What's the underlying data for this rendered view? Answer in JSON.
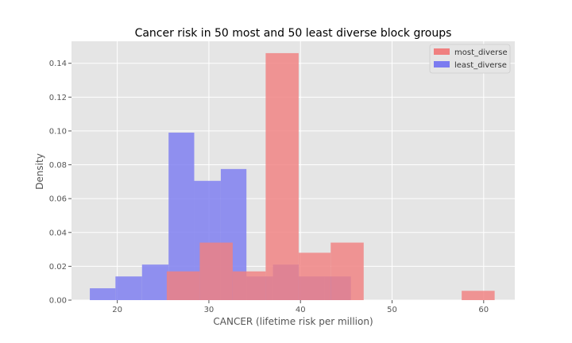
{
  "chart_data": {
    "type": "histogram",
    "title": "Cancer risk in 50 most and 50 least diverse block groups",
    "xlabel": "CANCER (lifetime risk per million)",
    "ylabel": "Density",
    "xlim": [
      15.0,
      63.4
    ],
    "ylim": [
      0,
      0.153
    ],
    "xticks": [
      20,
      30,
      40,
      50,
      60
    ],
    "yticks": [
      0.0,
      0.02,
      0.04,
      0.06,
      0.08,
      0.1,
      0.12,
      0.14
    ],
    "ytick_labels": [
      "0.00",
      "0.02",
      "0.04",
      "0.06",
      "0.08",
      "0.10",
      "0.12",
      "0.14"
    ],
    "grid": true,
    "legend_position": "top-right",
    "series": [
      {
        "name": "most_diverse",
        "color": "#f08080",
        "bins": [
          {
            "x0": 25.4,
            "x1": 29.0,
            "value": 0.017
          },
          {
            "x0": 29.0,
            "x1": 32.6,
            "value": 0.034
          },
          {
            "x0": 32.6,
            "x1": 36.2,
            "value": 0.017
          },
          {
            "x0": 36.2,
            "x1": 39.8,
            "value": 0.146
          },
          {
            "x0": 39.8,
            "x1": 43.3,
            "value": 0.028
          },
          {
            "x0": 43.3,
            "x1": 46.9,
            "value": 0.034
          },
          {
            "x0": 57.6,
            "x1": 61.2,
            "value": 0.0055
          }
        ]
      },
      {
        "name": "least_diverse",
        "color": "#7b7bf0",
        "bins": [
          {
            "x0": 17.0,
            "x1": 19.8,
            "value": 0.007
          },
          {
            "x0": 19.8,
            "x1": 22.7,
            "value": 0.014
          },
          {
            "x0": 22.7,
            "x1": 25.6,
            "value": 0.021
          },
          {
            "x0": 25.6,
            "x1": 28.4,
            "value": 0.099
          },
          {
            "x0": 28.4,
            "x1": 31.3,
            "value": 0.0705
          },
          {
            "x0": 31.3,
            "x1": 34.1,
            "value": 0.0775
          },
          {
            "x0": 34.1,
            "x1": 37.0,
            "value": 0.014
          },
          {
            "x0": 37.0,
            "x1": 39.8,
            "value": 0.021
          },
          {
            "x0": 39.8,
            "x1": 42.6,
            "value": 0.014
          },
          {
            "x0": 42.6,
            "x1": 45.5,
            "value": 0.014
          }
        ]
      }
    ]
  }
}
